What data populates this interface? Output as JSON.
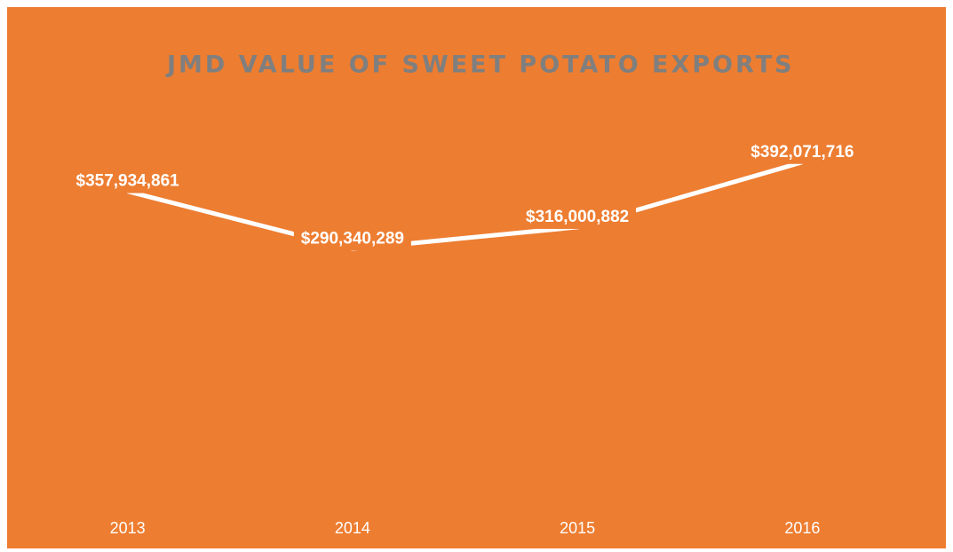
{
  "chart_data": {
    "type": "line",
    "title": "JMD VALUE OF SWEET POTATO EXPORTS",
    "categories": [
      "2013",
      "2014",
      "2015",
      "2016"
    ],
    "values": [
      357934861,
      290340289,
      316000882,
      392071716
    ],
    "value_labels": [
      "$357,934,861",
      "$290,340,289",
      "$316,000,882",
      "$392,071,716"
    ],
    "color": "#ffffff",
    "ylim": [
      0,
      450000000
    ]
  }
}
